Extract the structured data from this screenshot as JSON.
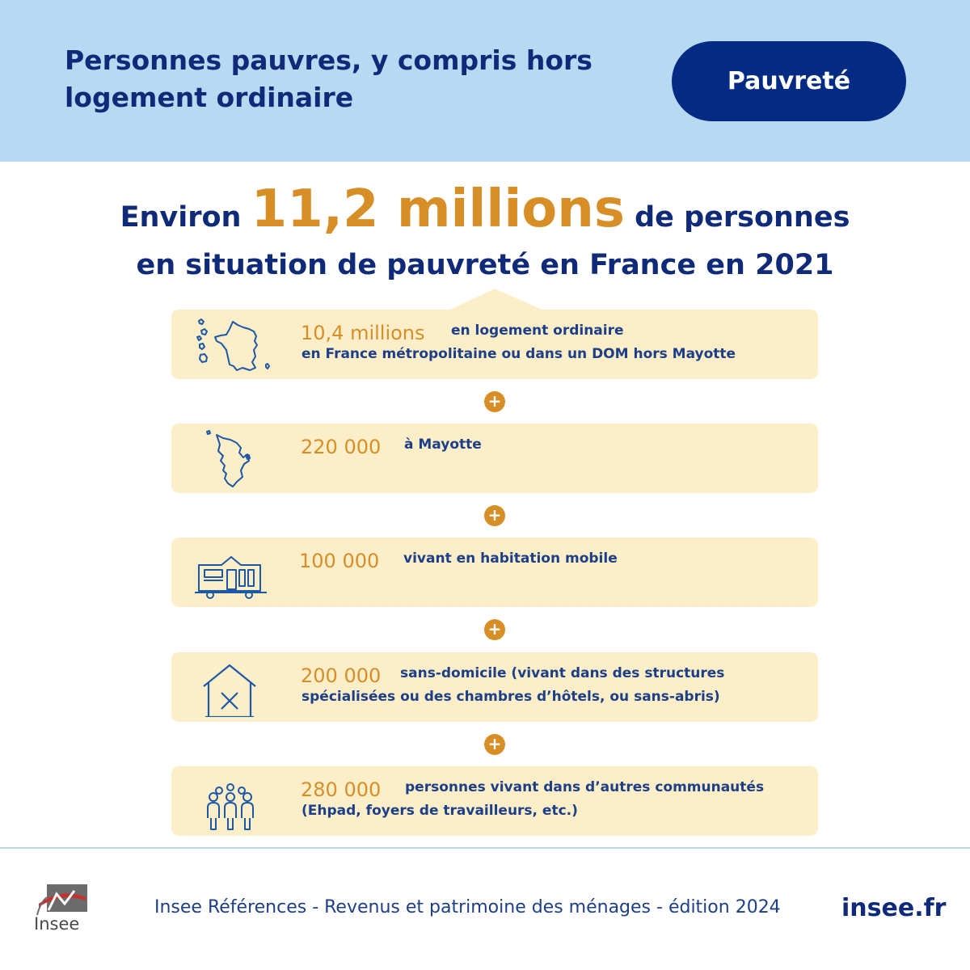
{
  "header": {
    "title": "Personnes pauvres, y compris hors logement ordinaire",
    "tag": "Pauvreté"
  },
  "headline": {
    "prefix": "Environ",
    "highlight": "11,2 millions",
    "suffix": "de personnes",
    "line2": "en situation de pauvreté en France en 2021"
  },
  "colors": {
    "navy": "#0f2a78",
    "accent": "#d88e27",
    "card": "#fbeec8",
    "header_bg": "#b8d9f2"
  },
  "items": [
    {
      "icon": "france-map-icon",
      "value": "10,4 millions",
      "desc": "en logement ordinaire",
      "desc2": "en France métropolitaine ou dans un DOM hors Mayotte"
    },
    {
      "icon": "mayotte-map-icon",
      "value": "220 000",
      "desc": "à Mayotte",
      "desc2": ""
    },
    {
      "icon": "mobile-home-icon",
      "value": "100 000",
      "desc": "vivant en habitation mobile",
      "desc2": ""
    },
    {
      "icon": "homeless-house-icon",
      "value": "200 000",
      "desc": "sans-domicile (vivant dans des structures",
      "desc2": "spécialisées ou des chambres d’hôtels, ou sans-abris)"
    },
    {
      "icon": "people-group-icon",
      "value": "280 000",
      "desc": "personnes vivant dans d’autres communautés",
      "desc2": "(Ehpad, foyers de travailleurs, etc.)"
    }
  ],
  "plus_sign": "+",
  "footer": {
    "logo_text": "Insee",
    "source": "Insee Références - Revenus et patrimoine des ménages - édition 2024",
    "site": "insee.fr"
  }
}
